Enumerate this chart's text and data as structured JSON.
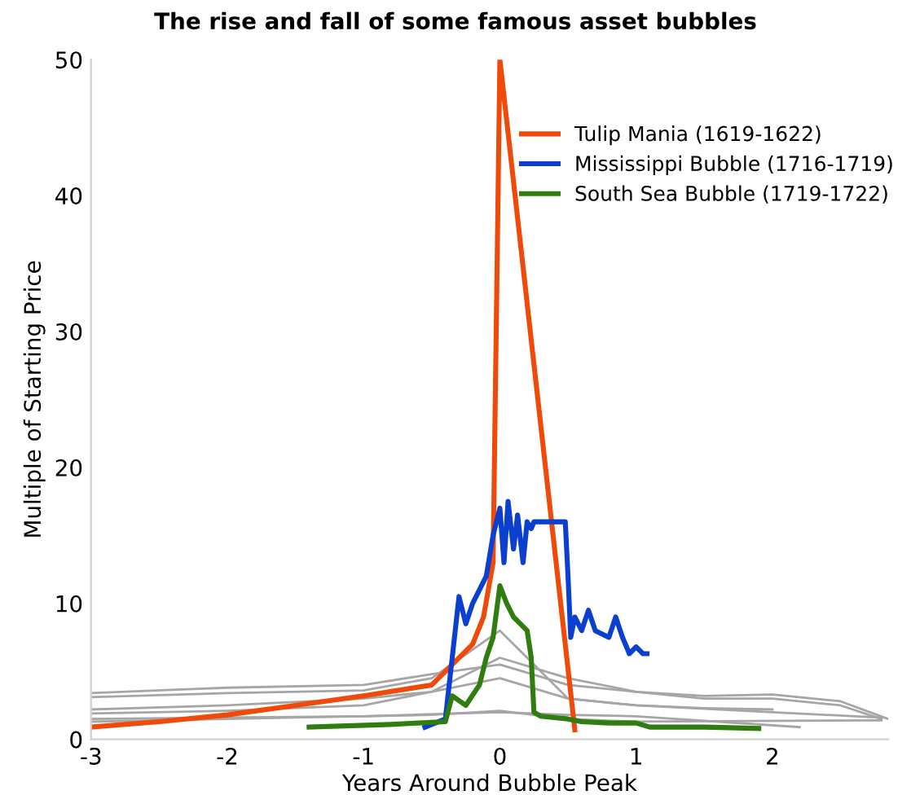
{
  "chart_data": {
    "type": "line",
    "title": "The rise and fall of some famous asset bubbles",
    "xlabel": "Years Around Bubble Peak",
    "ylabel": "Multiple of Starting Price",
    "xlim": [
      -3,
      2.85
    ],
    "xticks": [
      -3,
      -2,
      -1,
      0,
      1,
      2
    ],
    "ylim": [
      0,
      50
    ],
    "yticks": [
      0,
      10,
      20,
      30,
      40,
      50
    ],
    "grid": false,
    "legend": "top right",
    "marker": "none",
    "line_style": "solid",
    "series": [
      {
        "color": "#a6a6a6",
        "x": [
          -3,
          -2,
          -1,
          -0.5,
          0,
          0.5,
          1,
          1.5,
          2,
          2.5,
          2.8
        ],
        "values": [
          3.4,
          3.8,
          4,
          4.8,
          5.5,
          4,
          3.5,
          3,
          3,
          2.5,
          1.5
        ]
      },
      {
        "color": "#a6a6a6",
        "x": [
          -3,
          -2,
          -1,
          -0.5,
          0,
          0.2,
          0.5,
          1,
          1.5,
          2
        ],
        "values": [
          3.1,
          3.4,
          3.6,
          4.5,
          8,
          6,
          3,
          2.5,
          2.3,
          2.2
        ]
      },
      {
        "color": "#a6a6a6",
        "x": [
          -3,
          -2,
          -1,
          -0.5,
          0,
          0.5,
          1,
          1.5,
          2,
          2.5,
          2.85
        ],
        "values": [
          2.2,
          2.5,
          3,
          3.5,
          6,
          4.5,
          3.5,
          3.2,
          3.3,
          2.8,
          1.5
        ]
      },
      {
        "color": "#a6a6a6",
        "x": [
          -3,
          -2,
          -1,
          0,
          0.5,
          1,
          2,
          2.8
        ],
        "values": [
          1.9,
          2.1,
          2.5,
          4.5,
          3,
          2.5,
          2,
          1.6
        ]
      },
      {
        "color": "#a6a6a6",
        "x": [
          -3,
          -2,
          -1,
          0,
          0.5,
          1,
          2.2
        ],
        "values": [
          1.5,
          1.6,
          1.7,
          2,
          1.8,
          1.7,
          0.9
        ]
      },
      {
        "color": "#a6a6a6",
        "x": [
          -3,
          -1.5,
          -0.5,
          0,
          0.5,
          1,
          2.8
        ],
        "values": [
          1.3,
          1.6,
          1.8,
          2.1,
          1.5,
          1.3,
          1.4
        ]
      },
      {
        "name": "Tulip Mania (1619-1622)",
        "color": "#f04a0a",
        "x": [
          -3,
          -2.5,
          -2,
          -1.5,
          -1,
          -0.5,
          -0.35,
          -0.2,
          -0.12,
          -0.05,
          0,
          0.55
        ],
        "values": [
          0.9,
          1.3,
          1.8,
          2.5,
          3.2,
          4,
          5.5,
          7,
          9,
          13,
          50,
          0.7
        ]
      },
      {
        "name": "Mississippi Bubble (1716-1719)",
        "color": "#0a3fd0",
        "x": [
          -0.55,
          -0.4,
          -0.35,
          -0.3,
          -0.25,
          -0.2,
          -0.1,
          -0.05,
          0,
          0.03,
          0.06,
          0.1,
          0.13,
          0.17,
          0.2,
          0.23,
          0.25,
          0.48,
          0.5,
          0.52,
          0.55,
          0.6,
          0.65,
          0.7,
          0.8,
          0.85,
          0.9,
          0.95,
          1.0,
          1.05,
          1.08
        ],
        "values": [
          0.9,
          1.5,
          6,
          10.5,
          8.5,
          10,
          12,
          15,
          17,
          13,
          17.5,
          14,
          16.5,
          13,
          16,
          15.5,
          16,
          16,
          12,
          7.5,
          9,
          8,
          9.5,
          8,
          7.5,
          9,
          7.5,
          6.3,
          6.8,
          6.3,
          6.3
        ]
      },
      {
        "name": "South Sea Bubble (1719-1722)",
        "color": "#2e7d0e",
        "x": [
          -1.4,
          -0.8,
          -0.4,
          -0.35,
          -0.25,
          -0.15,
          -0.1,
          -0.05,
          0,
          0.05,
          0.1,
          0.2,
          0.23,
          0.25,
          0.3,
          0.5,
          0.6,
          0.8,
          1.0,
          1.1,
          1.5,
          1.9
        ],
        "values": [
          0.9,
          1.1,
          1.3,
          3.2,
          2.5,
          4,
          6,
          7.5,
          11.3,
          10,
          9,
          8,
          6,
          2,
          1.7,
          1.5,
          1.3,
          1.2,
          1.2,
          0.9,
          0.9,
          0.8
        ]
      }
    ]
  }
}
